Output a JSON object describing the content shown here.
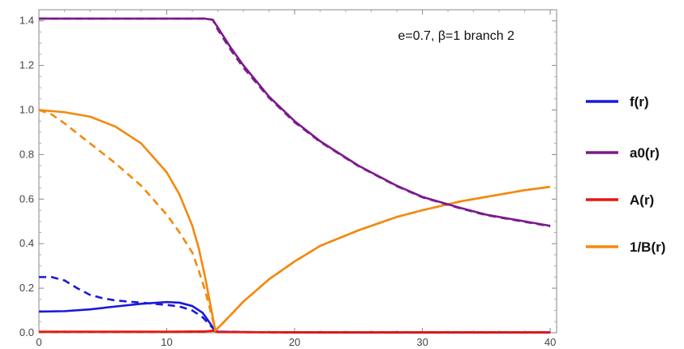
{
  "chart_data": {
    "type": "line",
    "annotation": "e=0.7, β=1  branch 2",
    "xlim": [
      0,
      40.5
    ],
    "ylim": [
      0,
      1.45
    ],
    "x_ticks": [
      0,
      10,
      20,
      30,
      40
    ],
    "x_tick_labels": [
      "0",
      "10",
      "20",
      "30",
      "40"
    ],
    "y_ticks": [
      0.0,
      0.2,
      0.4,
      0.6,
      0.8,
      1.0,
      1.2,
      1.4
    ],
    "y_tick_labels": [
      "0.0",
      "0.2",
      "0.4",
      "0.6",
      "0.8",
      "1.0",
      "1.2",
      "1.4"
    ],
    "grid": false,
    "legend_position": "right",
    "legend": [
      {
        "label": "f(r)",
        "color": "#1a1adb"
      },
      {
        "label": "a0(r)",
        "color": "#7b1a8c"
      },
      {
        "label": "A(r)",
        "color": "#e8160c"
      },
      {
        "label": "1/B(r)",
        "color": "#f28a0f"
      }
    ],
    "series": [
      {
        "name": "f(r)",
        "style": "solid",
        "color": "#1a1adb",
        "x": [
          0,
          2,
          4,
          6,
          8,
          10,
          11,
          12,
          12.8,
          13.3,
          13.7,
          14,
          16,
          20,
          25,
          30,
          35,
          40
        ],
        "y": [
          0.095,
          0.097,
          0.105,
          0.118,
          0.13,
          0.138,
          0.135,
          0.12,
          0.09,
          0.05,
          0.015,
          0.005,
          0.003,
          0.002,
          0.001,
          0.001,
          0.001,
          0.001
        ]
      },
      {
        "name": "f(r)",
        "style": "dashed",
        "color": "#1a1adb",
        "x": [
          0,
          1,
          2,
          3,
          4,
          5,
          6,
          8,
          10,
          11,
          12,
          12.8,
          13.3,
          13.7,
          14,
          16,
          20,
          25,
          30,
          35,
          40
        ],
        "y": [
          0.25,
          0.25,
          0.235,
          0.2,
          0.17,
          0.155,
          0.145,
          0.135,
          0.125,
          0.118,
          0.1,
          0.07,
          0.04,
          0.015,
          0.005,
          0.003,
          0.002,
          0.001,
          0.001,
          0.001,
          0.001
        ]
      },
      {
        "name": "a0(r)",
        "style": "solid",
        "color": "#7b1a8c",
        "x": [
          0,
          5,
          10,
          13,
          13.6,
          14,
          15,
          16,
          18,
          20,
          22,
          25,
          28,
          30,
          33,
          35,
          38,
          40
        ],
        "y": [
          1.41,
          1.41,
          1.41,
          1.41,
          1.405,
          1.37,
          1.28,
          1.2,
          1.06,
          0.95,
          0.86,
          0.75,
          0.66,
          0.61,
          0.56,
          0.53,
          0.5,
          0.48
        ]
      },
      {
        "name": "a0(r)",
        "style": "dashed",
        "color": "#7b1a8c",
        "x": [
          0,
          5,
          10,
          13,
          13.6,
          14,
          15,
          16,
          18,
          20,
          22,
          25,
          28,
          30,
          33,
          35,
          38,
          40
        ],
        "y": [
          1.41,
          1.41,
          1.41,
          1.41,
          1.405,
          1.36,
          1.27,
          1.19,
          1.055,
          0.945,
          0.857,
          0.748,
          0.658,
          0.608,
          0.558,
          0.528,
          0.498,
          0.478
        ]
      },
      {
        "name": "A(r)",
        "style": "solid",
        "color": "#e8160c",
        "x": [
          0,
          5,
          10,
          13,
          13.7,
          14,
          20,
          30,
          40
        ],
        "y": [
          0.005,
          0.005,
          0.005,
          0.006,
          0.01,
          0.003,
          0.002,
          0.002,
          0.002
        ]
      },
      {
        "name": "A(r)",
        "style": "dashed",
        "color": "#e8160c",
        "x": [
          0,
          5,
          10,
          13,
          13.7,
          14,
          20,
          30,
          40
        ],
        "y": [
          0.004,
          0.004,
          0.004,
          0.005,
          0.009,
          0.003,
          0.002,
          0.002,
          0.002
        ]
      },
      {
        "name": "1/B(r)",
        "style": "solid",
        "color": "#f28a0f",
        "x": [
          0,
          2,
          4,
          6,
          8,
          10,
          11,
          12,
          12.5,
          13,
          13.5,
          13.8,
          14.5,
          16,
          18,
          20,
          22,
          25,
          28,
          30,
          33,
          35,
          38,
          40
        ],
        "y": [
          1.0,
          0.99,
          0.97,
          0.925,
          0.85,
          0.72,
          0.62,
          0.48,
          0.38,
          0.25,
          0.1,
          0.01,
          0.05,
          0.14,
          0.24,
          0.32,
          0.39,
          0.46,
          0.52,
          0.55,
          0.59,
          0.61,
          0.64,
          0.655
        ]
      },
      {
        "name": "1/B(r)",
        "style": "dashed",
        "color": "#f28a0f",
        "x": [
          0,
          1,
          2,
          4,
          6,
          8,
          10,
          11,
          12,
          12.5,
          13,
          13.5,
          13.8,
          14.5,
          16,
          18,
          20,
          22,
          25,
          28,
          30,
          33,
          35,
          38,
          40
        ],
        "y": [
          1.0,
          0.98,
          0.94,
          0.85,
          0.76,
          0.66,
          0.53,
          0.45,
          0.36,
          0.28,
          0.19,
          0.08,
          0.01,
          0.05,
          0.14,
          0.24,
          0.32,
          0.39,
          0.46,
          0.52,
          0.55,
          0.59,
          0.61,
          0.64,
          0.655
        ]
      }
    ]
  }
}
